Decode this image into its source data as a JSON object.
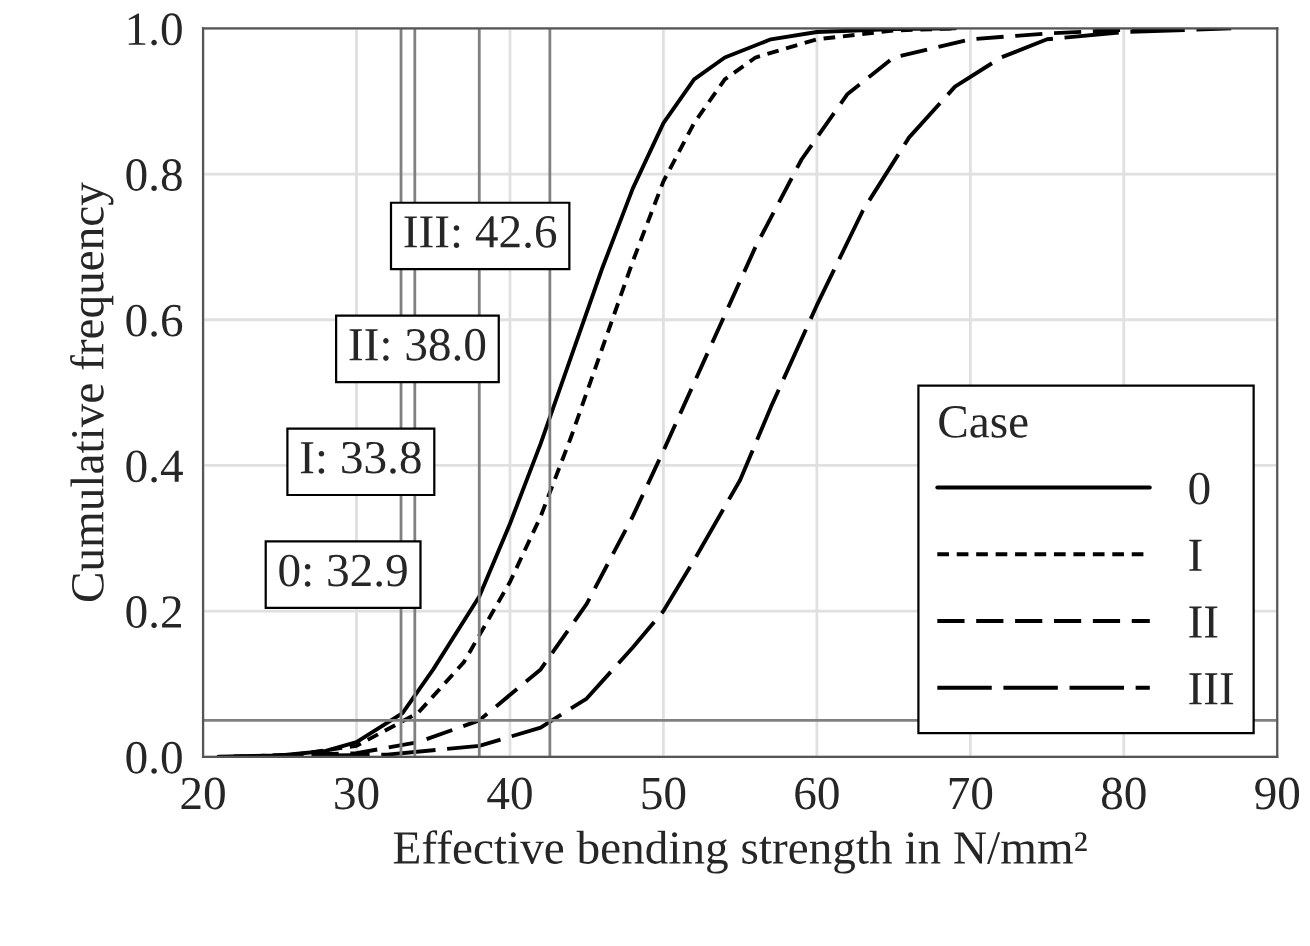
{
  "chart_data": {
    "type": "line",
    "xlabel": "Effective bending strength in N/mm²",
    "ylabel": "Cumulative frequency",
    "legend_title": "Case",
    "legend": "bottom right",
    "grid": true,
    "xlim": [
      20,
      90
    ],
    "ylim": [
      0,
      1.0
    ],
    "xticks": [
      20,
      30,
      40,
      50,
      60,
      70,
      80,
      90
    ],
    "yticks": [
      {
        "value": 0,
        "label": "0.0"
      },
      0.2,
      0.4,
      0.6,
      0.8,
      {
        "value": 1.0,
        "label": "1.0"
      }
    ],
    "series": [
      {
        "name": "0",
        "color": "#000000",
        "line_style": "solid",
        "x": [
          21,
          25,
          28,
          30,
          33,
          35,
          38,
          40,
          42,
          44,
          46,
          48,
          50,
          52,
          54,
          57,
          60,
          65,
          69
        ],
        "values": [
          0,
          0.002,
          0.008,
          0.02,
          0.06,
          0.12,
          0.22,
          0.32,
          0.43,
          0.55,
          0.67,
          0.78,
          0.87,
          0.93,
          0.96,
          0.985,
          0.995,
          0.999,
          1.0
        ]
      },
      {
        "name": "I",
        "color": "#000000",
        "line_style": "dashed",
        "x": [
          22,
          26,
          30,
          34,
          37,
          40,
          42,
          44,
          46,
          48,
          50,
          52,
          54,
          56,
          60,
          65,
          69
        ],
        "values": [
          0,
          0.003,
          0.015,
          0.06,
          0.13,
          0.24,
          0.33,
          0.44,
          0.56,
          0.68,
          0.79,
          0.87,
          0.93,
          0.96,
          0.985,
          0.997,
          1.0
        ]
      },
      {
        "name": "II",
        "color": "#000000",
        "line_style": "dashed",
        "x": [
          22,
          30,
          34,
          38,
          42,
          45,
          48,
          50,
          53,
          56,
          59,
          62,
          65,
          70,
          75,
          80,
          83
        ],
        "values": [
          0,
          0.005,
          0.02,
          0.05,
          0.12,
          0.21,
          0.33,
          0.42,
          0.56,
          0.7,
          0.82,
          0.91,
          0.96,
          0.985,
          0.993,
          0.998,
          1.0
        ]
      },
      {
        "name": "III",
        "color": "#000000",
        "line_style": "dashed",
        "x": [
          23,
          32,
          38,
          42,
          45,
          48,
          50,
          52,
          55,
          57,
          60,
          63,
          66,
          69,
          72,
          75,
          80,
          87
        ],
        "values": [
          0,
          0.003,
          0.015,
          0.04,
          0.08,
          0.15,
          0.2,
          0.27,
          0.38,
          0.48,
          0.62,
          0.75,
          0.85,
          0.92,
          0.96,
          0.985,
          0.995,
          1.0
        ]
      }
    ],
    "ref_lines": [
      {
        "axis": "x",
        "value": 32.9,
        "label": "0: 32.9",
        "color": "#808080"
      },
      {
        "axis": "x",
        "value": 33.8,
        "label": "I: 33.8",
        "color": "#808080"
      },
      {
        "axis": "x",
        "value": 38.0,
        "label": "II: 38.0",
        "color": "#808080"
      },
      {
        "axis": "x",
        "value": 42.6,
        "label": "III: 42.6",
        "color": "#808080"
      },
      {
        "axis": "y",
        "value": 0.05,
        "color": "#808080"
      }
    ]
  }
}
